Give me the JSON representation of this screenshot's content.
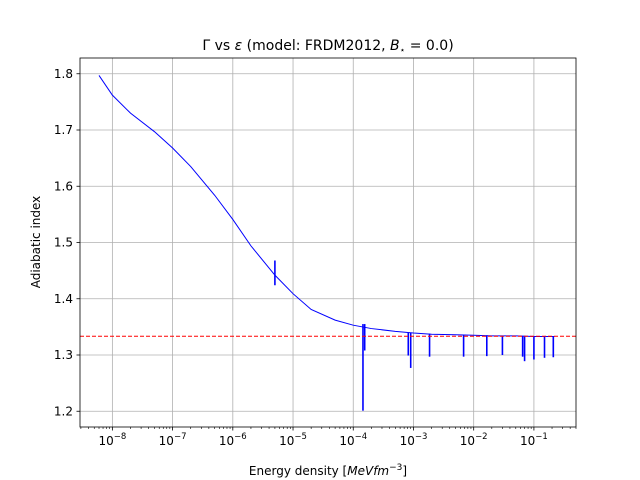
{
  "chart_data": {
    "type": "line",
    "title": {
      "gamma": "Γ",
      "vs": " vs ",
      "eps": "ε",
      "model_open": " (model: FRDM2012, ",
      "b": "B",
      "b_sub": "⋆",
      "b_value": " = 0.0)"
    },
    "xlabel": {
      "text": "Energy density [",
      "unit_main": "MeVfm",
      "unit_exp": "−3",
      "close": "]"
    },
    "ylabel": "Adiabatic index",
    "x_scale": "log",
    "xlim": [
      2.9e-09,
      0.5
    ],
    "ylim": [
      1.172,
      1.828
    ],
    "x_ticks": [
      {
        "value": 1e-08,
        "base": "10",
        "exp": "−8"
      },
      {
        "value": 1e-07,
        "base": "10",
        "exp": "−7"
      },
      {
        "value": 1e-06,
        "base": "10",
        "exp": "−6"
      },
      {
        "value": 1e-05,
        "base": "10",
        "exp": "−5"
      },
      {
        "value": 0.0001,
        "base": "10",
        "exp": "−4"
      },
      {
        "value": 0.001,
        "base": "10",
        "exp": "−3"
      },
      {
        "value": 0.01,
        "base": "10",
        "exp": "−2"
      },
      {
        "value": 0.1,
        "base": "10",
        "exp": "−1"
      }
    ],
    "y_ticks": [
      {
        "value": 1.2,
        "label": "1.2"
      },
      {
        "value": 1.3,
        "label": "1.3"
      },
      {
        "value": 1.4,
        "label": "1.4"
      },
      {
        "value": 1.5,
        "label": "1.5"
      },
      {
        "value": 1.6,
        "label": "1.6"
      },
      {
        "value": 1.7,
        "label": "1.7"
      },
      {
        "value": 1.8,
        "label": "1.8"
      }
    ],
    "grid": true,
    "series": [
      {
        "color": "#0000ff",
        "x": [
          6e-09,
          1e-08,
          2e-08,
          5e-08,
          1e-07,
          2e-07,
          5e-07,
          1e-06,
          2e-06,
          5e-06,
          1e-05,
          2e-05,
          5e-05,
          0.0001,
          0.0002,
          0.0005,
          0.001,
          0.002,
          0.005,
          0.01,
          0.02,
          0.05,
          0.1,
          0.2,
          0.22
        ],
        "y": [
          1.797,
          1.762,
          1.73,
          1.697,
          1.668,
          1.635,
          1.584,
          1.541,
          1.494,
          1.442,
          1.409,
          1.381,
          1.362,
          1.353,
          1.347,
          1.342,
          1.339,
          1.337,
          1.336,
          1.335,
          1.334,
          1.334,
          1.333,
          1.333,
          1.333
        ]
      }
    ],
    "spikes": [
      {
        "x": 5e-06,
        "y_top": 1.468,
        "y_bottom": 1.424
      },
      {
        "x": 0.000145,
        "y_top": 1.355,
        "y_bottom": 1.201
      },
      {
        "x": 0.000155,
        "y_top": 1.355,
        "y_bottom": 1.308
      },
      {
        "x": 0.00082,
        "y_top": 1.34,
        "y_bottom": 1.299
      },
      {
        "x": 0.0009,
        "y_top": 1.34,
        "y_bottom": 1.277
      },
      {
        "x": 0.00185,
        "y_top": 1.338,
        "y_bottom": 1.297
      },
      {
        "x": 0.0068,
        "y_top": 1.336,
        "y_bottom": 1.297
      },
      {
        "x": 0.0165,
        "y_top": 1.335,
        "y_bottom": 1.298
      },
      {
        "x": 0.03,
        "y_top": 1.334,
        "y_bottom": 1.3
      },
      {
        "x": 0.065,
        "y_top": 1.334,
        "y_bottom": 1.297
      },
      {
        "x": 0.07,
        "y_top": 1.334,
        "y_bottom": 1.289
      },
      {
        "x": 0.1,
        "y_top": 1.333,
        "y_bottom": 1.292
      },
      {
        "x": 0.15,
        "y_top": 1.333,
        "y_bottom": 1.295
      },
      {
        "x": 0.21,
        "y_top": 1.333,
        "y_bottom": 1.296
      }
    ],
    "reference_line": {
      "y": 1.3333,
      "color": "#ff0000",
      "style": "dashed"
    },
    "grid_color": "#b0b0b0"
  }
}
